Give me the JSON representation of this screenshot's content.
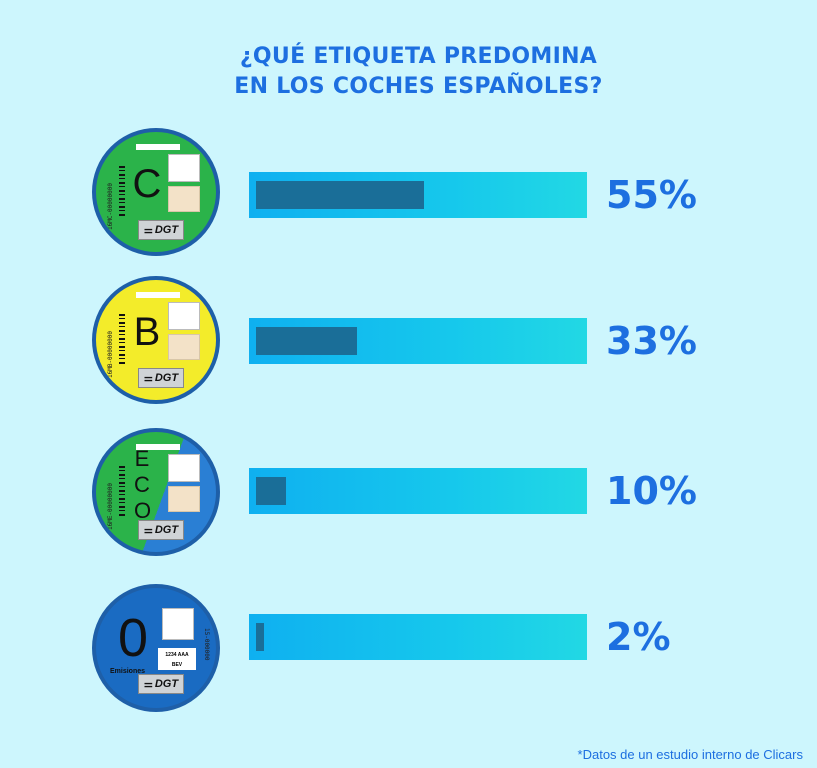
{
  "title_lines": [
    "¿QUÉ ETIQUETA PREDOMINA",
    "EN LOS COCHES ESPAÑOLES?"
  ],
  "footnote": "*Datos de un estudio interno de Clicars",
  "colors": {
    "title": "#1d6fe0",
    "bar_track": "#16c8ec",
    "bar_fill": "#1a6e98",
    "background": "#cdf6fd"
  },
  "badges": [
    {
      "letter": "C",
      "code": "16MC-00000000",
      "dgt": "DGT",
      "icon": "dgt-logo-icon"
    },
    {
      "letter": "B",
      "code": "16MB-00000000",
      "dgt": "DGT",
      "icon": "dgt-logo-icon"
    },
    {
      "letter": "ECO",
      "code": "16ME-00000000",
      "dgt": "DGT",
      "icon": "dgt-logo-icon"
    },
    {
      "letter": "0",
      "sub": "Emisiones",
      "plate_line1": "1234 AAA",
      "plate_line2": "BEV",
      "code": "15-000000",
      "dgt": "DGT",
      "icon": "dgt-logo-icon"
    }
  ],
  "chart_data": {
    "type": "bar",
    "orientation": "horizontal",
    "title": "¿QUÉ ETIQUETA PREDOMINA EN LOS COCHES ESPAÑOLES?",
    "categories": [
      "C",
      "B",
      "ECO",
      "0"
    ],
    "values": [
      55,
      33,
      10,
      2
    ],
    "value_labels": [
      "55%",
      "33%",
      "10%",
      "2%"
    ],
    "xlim": [
      0,
      100
    ],
    "grid": false,
    "legend": "none"
  }
}
